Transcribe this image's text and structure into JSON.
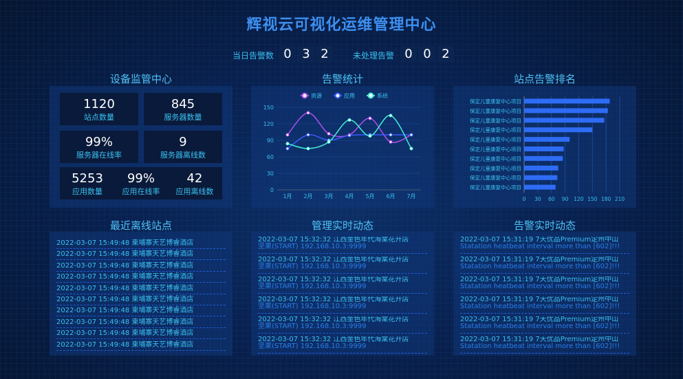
{
  "header": {
    "title": "辉视云可视化运维管理中心",
    "today_alarm_label": "当日告警数",
    "today_alarm_digits": [
      "0",
      "3",
      "2"
    ],
    "unhandled_label": "未处理告警",
    "unhandled_digits": [
      "0",
      "0",
      "2"
    ]
  },
  "device": {
    "title": "设备监管中心",
    "stats": [
      {
        "value": "1120",
        "label": "站点数量"
      },
      {
        "value": "845",
        "label": "服务器数量"
      },
      {
        "value": "99%",
        "label": "服务器在线率"
      },
      {
        "value": "9",
        "label": "服务器离线数"
      },
      {
        "value": "5253",
        "label": "应用数量"
      },
      {
        "value": "99%",
        "label": "应用在线率"
      },
      {
        "value": "42",
        "label": "应用离线数"
      }
    ]
  },
  "alarm_stats": {
    "title": "告警统计"
  },
  "ranking": {
    "title": "站点告警排名"
  },
  "offline": {
    "title": "最近离线站点",
    "items": [
      "2022-03-07 15:49:48 柬埔寨天艺博睿酒店",
      "2022-03-07 15:49:48 柬埔寨天艺博睿酒店",
      "2022-03-07 15:49:48 柬埔寨天艺博睿酒店",
      "2022-03-07 15:49:48 柬埔寨天艺博睿酒店",
      "2022-03-07 15:49:48 柬埔寨天艺博睿酒店",
      "2022-03-07 15:49:48 柬埔寨天艺博睿酒店",
      "2022-03-07 15:49:48 柬埔寨天艺博睿酒店",
      "2022-03-07 15:49:48 柬埔寨天艺博睿酒店",
      "2022-03-07 15:49:48 柬埔寨天艺博睿酒店",
      "2022-03-07 15:49:48 柬埔寨天艺博睿酒店"
    ]
  },
  "mgmt": {
    "title": "管理实时动态",
    "items": [
      {
        "line1": "2022-03-07 15:32:32 江西金色年代海棠花开店",
        "line2": "坚果(START) 192.168.10.3:9999"
      },
      {
        "line1": "2022-03-07 15:32:32 江西金色年代海棠花开店",
        "line2": "坚果(START) 192.168.10.3:9999"
      },
      {
        "line1": "2022-03-07 15:32:32 江西金色年代海棠花开店",
        "line2": "坚果(START) 192.168.10.3:9999"
      },
      {
        "line1": "2022-03-07 15:32:32 江西金色年代海棠花开店",
        "line2": "坚果(START) 192.168.10.3:9999"
      },
      {
        "line1": "2022-03-07 15:32:32 江西金色年代海棠花开店",
        "line2": "坚果(START) 192.168.10.3:9999"
      },
      {
        "line1": "2022-03-07 15:32:32 江西金色年代海棠花开店",
        "line2": "坚果(START) 192.168.10.3:9999"
      }
    ]
  },
  "alarm_live": {
    "title": "告警实时动态",
    "items": [
      {
        "line1": "2022-03-07 15:31:19 7天优品Premium定州中山",
        "line2": "Statation heatbeat interval more than [602]!!!"
      },
      {
        "line1": "2022-03-07 15:31:19 7天优品Premium定州中山",
        "line2": "Statation heatbeat interval more than [602]!!!"
      },
      {
        "line1": "2022-03-07 15:31:19 7天优品Premium定州中山",
        "line2": "Statation heatbeat interval more than [602]!!!"
      },
      {
        "line1": "2022-03-07 15:31:19 7天优品Premium定州中山",
        "line2": "Statation heatbeat interval more than [602]!!!"
      },
      {
        "line1": "2022-03-07 15:31:19 7天优品Premium定州中山",
        "line2": "Statation heatbeat interval more than [602]!!!"
      },
      {
        "line1": "2022-03-07 15:31:19 7天优品Premium定州中山",
        "line2": "Statation heatbeat interval more than [602]!!!"
      }
    ]
  },
  "chart_data": [
    {
      "type": "line",
      "categories": [
        "1月",
        "2月",
        "3月",
        "4月",
        "5月",
        "6月",
        "7月"
      ],
      "ylim": [
        0,
        150
      ],
      "yticks": [
        "0",
        "30",
        "60",
        "90",
        "120",
        "150"
      ],
      "legend": "top",
      "grid": true,
      "series": [
        {
          "name": "资源",
          "color": "#b44df0",
          "values": [
            100,
            140,
            102,
            100,
            130,
            87,
            100
          ]
        },
        {
          "name": "应用",
          "color": "#3a5cff",
          "values": [
            75,
            100,
            90,
            99,
            100,
            100,
            100
          ]
        },
        {
          "name": "系统",
          "color": "#3ef0d8",
          "values": [
            84,
            75,
            87,
            127,
            98,
            135,
            75
          ]
        }
      ]
    },
    {
      "type": "bar",
      "orientation": "horizontal",
      "color": "#2e6cf5",
      "categories": [
        "保定儿童康复中心项目",
        "保定儿童康复中心项目",
        "保定儿童康复中心项目",
        "保定儿童康复中心项目",
        "保定儿童康复中心项目",
        "保定儿童康复中心项目",
        "保定儿童康复中心项目",
        "保定儿童康复中心项目",
        "保定儿童康复中心项目",
        "保定儿童康复中心项目"
      ],
      "values": [
        188,
        184,
        176,
        150,
        100,
        87,
        85,
        75,
        73,
        69
      ],
      "xlim": [
        0,
        210
      ],
      "xticks": [
        "0",
        "30",
        "60",
        "90",
        "120",
        "150",
        "180",
        "210"
      ],
      "grid": true
    }
  ]
}
